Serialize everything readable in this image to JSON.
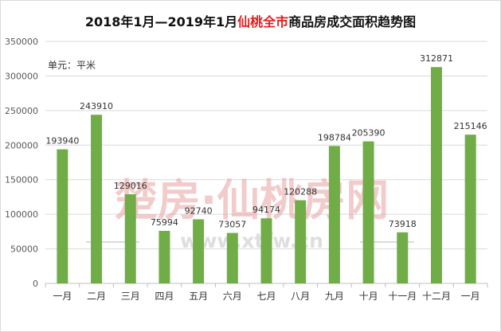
{
  "title": {
    "part1": "2018年1月—2019年1月",
    "highlight": "仙桃全市",
    "part2": "商品房成交面积趋势图"
  },
  "unit_label": "单元：平米",
  "watermark": {
    "text": "楚房·仙桃房网",
    "url": "www.xtfw.cn"
  },
  "colors": {
    "bar": "#70ad47",
    "grid": "#d9d9d9",
    "axis_text": "#595959",
    "title_highlight": "#e11d1d",
    "watermark": "#e8a0a0"
  },
  "chart_data": {
    "type": "bar",
    "title": "2018年1月—2019年1月仙桃全市商品房成交面积趋势图",
    "ylabel": "单元：平米",
    "xlabel": "",
    "categories": [
      "一月",
      "二月",
      "三月",
      "四月",
      "五月",
      "六月",
      "七月",
      "八月",
      "九月",
      "十月",
      "十一月",
      "十二月",
      "一月"
    ],
    "values": [
      193940,
      243910,
      129016,
      75994,
      92740,
      73057,
      94174,
      120288,
      198784,
      205390,
      73918,
      312871,
      215146
    ],
    "ylim": [
      0,
      350000
    ],
    "yticks": [
      0,
      50000,
      100000,
      150000,
      200000,
      250000,
      300000,
      350000
    ],
    "grid": true,
    "legend": "none"
  }
}
